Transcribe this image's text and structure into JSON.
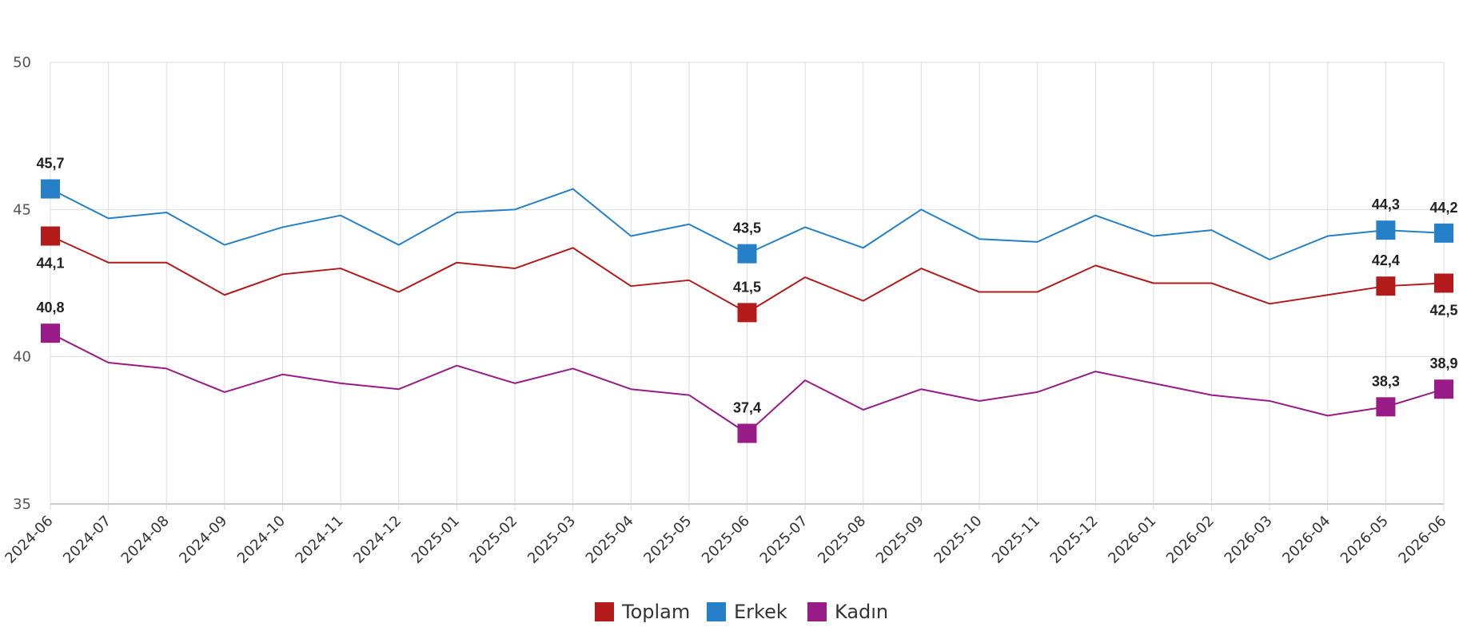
{
  "chart_data": {
    "type": "line",
    "title": "",
    "xlabel": "",
    "ylabel": "",
    "ylim": [
      35,
      50
    ],
    "yticks": [
      "35",
      "40",
      "45",
      "50"
    ],
    "grid": true,
    "legend_position": "bottom",
    "categories": [
      "2024-06",
      "2024-07",
      "2024-08",
      "2024-09",
      "2024-10",
      "2024-11",
      "2024-12",
      "2025-01",
      "2025-02",
      "2025-03",
      "2025-04",
      "2025-05",
      "2025-06",
      "2025-07",
      "2025-08",
      "2025-09",
      "2025-10",
      "2025-11",
      "2025-12",
      "2026-01",
      "2026-02",
      "2026-03",
      "2026-04",
      "2026-05",
      "2026-06"
    ],
    "series": [
      {
        "name": "Toplam",
        "color": "#b31b1b",
        "values": [
          44.1,
          43.2,
          43.2,
          42.1,
          42.8,
          43.0,
          42.2,
          43.2,
          43.0,
          43.7,
          42.4,
          42.6,
          41.5,
          42.7,
          41.9,
          43.0,
          42.2,
          42.2,
          43.1,
          42.5,
          42.5,
          41.8,
          42.1,
          42.4,
          42.5
        ],
        "labels": [
          {
            "i": 0,
            "text": "44,1",
            "pos": "below"
          },
          {
            "i": 12,
            "text": "41,5",
            "pos": "above"
          },
          {
            "i": 23,
            "text": "42,4",
            "pos": "above"
          },
          {
            "i": 24,
            "text": "42,5",
            "pos": "below"
          }
        ]
      },
      {
        "name": "Erkek",
        "color": "#2680c8",
        "values": [
          45.7,
          44.7,
          44.9,
          43.8,
          44.4,
          44.8,
          43.8,
          44.9,
          45.0,
          45.7,
          44.1,
          44.5,
          43.5,
          44.4,
          43.7,
          45.0,
          44.0,
          43.9,
          44.8,
          44.1,
          44.3,
          43.3,
          44.1,
          44.3,
          44.2
        ],
        "labels": [
          {
            "i": 0,
            "text": "45,7",
            "pos": "above"
          },
          {
            "i": 12,
            "text": "43,5",
            "pos": "above"
          },
          {
            "i": 23,
            "text": "44,3",
            "pos": "above"
          },
          {
            "i": 24,
            "text": "44,2",
            "pos": "above"
          }
        ]
      },
      {
        "name": "Kadın",
        "color": "#981b88",
        "values": [
          40.8,
          39.8,
          39.6,
          38.8,
          39.4,
          39.1,
          38.9,
          39.7,
          39.1,
          39.6,
          38.9,
          38.7,
          37.4,
          39.2,
          38.2,
          38.9,
          38.5,
          38.8,
          39.5,
          39.1,
          38.7,
          38.5,
          38.0,
          38.3,
          38.9
        ],
        "labels": [
          {
            "i": 0,
            "text": "40,8",
            "pos": "above"
          },
          {
            "i": 12,
            "text": "37,4",
            "pos": "above"
          },
          {
            "i": 23,
            "text": "38,3",
            "pos": "above"
          },
          {
            "i": 24,
            "text": "38,9",
            "pos": "above"
          }
        ]
      }
    ]
  }
}
